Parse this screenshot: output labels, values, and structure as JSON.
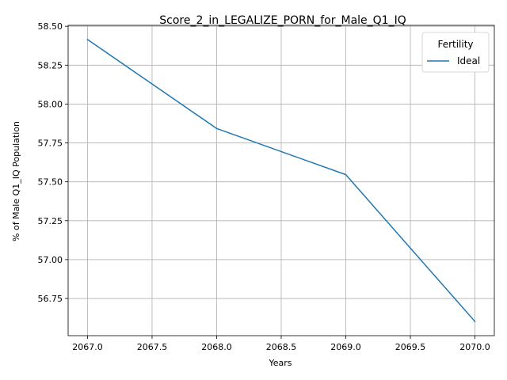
{
  "chart_data": {
    "type": "line",
    "title": "Score_2_in_LEGALIZE_PORN_for_Male_Q1_IQ",
    "xlabel": "Years",
    "ylabel": "% of Male Q1_IQ Population",
    "x": [
      2067,
      2068,
      2069,
      2070
    ],
    "series": [
      {
        "name": "Ideal",
        "values": [
          58.415,
          57.843,
          57.546,
          56.602
        ],
        "color": "#1f77b4"
      }
    ],
    "xlim": [
      2066.85,
      2070.15
    ],
    "ylim": [
      56.511,
      58.506
    ],
    "xticks": [
      "2067.0",
      "2067.5",
      "2068.0",
      "2068.5",
      "2069.0",
      "2069.5",
      "2070.0"
    ],
    "yticks": [
      "56.75",
      "57.00",
      "57.25",
      "57.50",
      "57.75",
      "58.00",
      "58.25",
      "58.50"
    ],
    "grid": true,
    "legend": {
      "title": "Fertility",
      "placement": "top-right"
    }
  }
}
